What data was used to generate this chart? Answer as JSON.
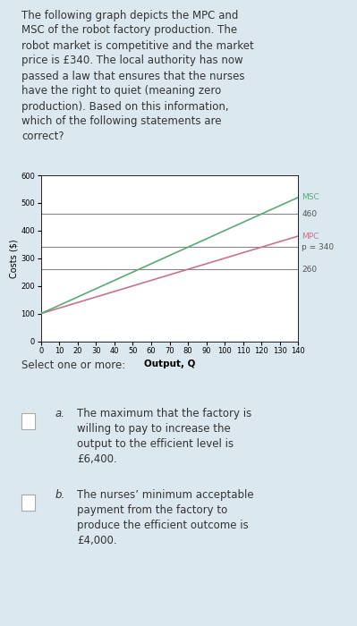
{
  "title_text": "The following graph depicts the MPC and\nMSC of the robot factory production. The\nrobot market is competitive and the market\nprice is £340. The local authority has now\npassed a law that ensures that the nurses\nhave the right to quiet (meaning zero\nproduction). Based on this information,\nwhich of the following statements are\ncorrect?",
  "bg_color": "#dce8ef",
  "chart_bg": "#ffffff",
  "x_min": 0,
  "x_max": 140,
  "y_min": 0,
  "y_max": 600,
  "x_ticks": [
    0,
    10,
    20,
    30,
    40,
    50,
    60,
    70,
    80,
    90,
    100,
    110,
    120,
    130,
    140
  ],
  "y_ticks": [
    0,
    100,
    200,
    300,
    400,
    500,
    600
  ],
  "xlabel": "Output, Q",
  "ylabel": "Costs ($)",
  "mpc_color": "#c8748a",
  "msc_color": "#5aaa78",
  "h_line_color": "#888888",
  "mpc_start": 100,
  "mpc_slope": 2.0,
  "msc_start": 100,
  "msc_slope": 3.0,
  "p_level": 340,
  "line_260": 260,
  "line_460": 460,
  "label_msc": "MSC",
  "label_mpc": "MPC",
  "label_p": "p = 340",
  "label_260": "260",
  "label_460": "460",
  "select_text": "Select one or more:",
  "option_a_label": "a.",
  "option_a_text": "The maximum that the factory is\nwilling to pay to increase the\noutput to the efficient level is\n£6,400.",
  "option_b_label": "b.",
  "option_b_text": "The nurses’ minimum acceptable\npayment from the factory to\nproduce the efficient outcome is\n£4,000.",
  "checkbox_color": "#ffffff",
  "checkbox_border": "#aaaaaa",
  "title_fontsize": 8.5,
  "tick_fontsize": 6,
  "label_fontsize": 7,
  "annot_fontsize": 6.5,
  "body_fontsize": 8.5
}
